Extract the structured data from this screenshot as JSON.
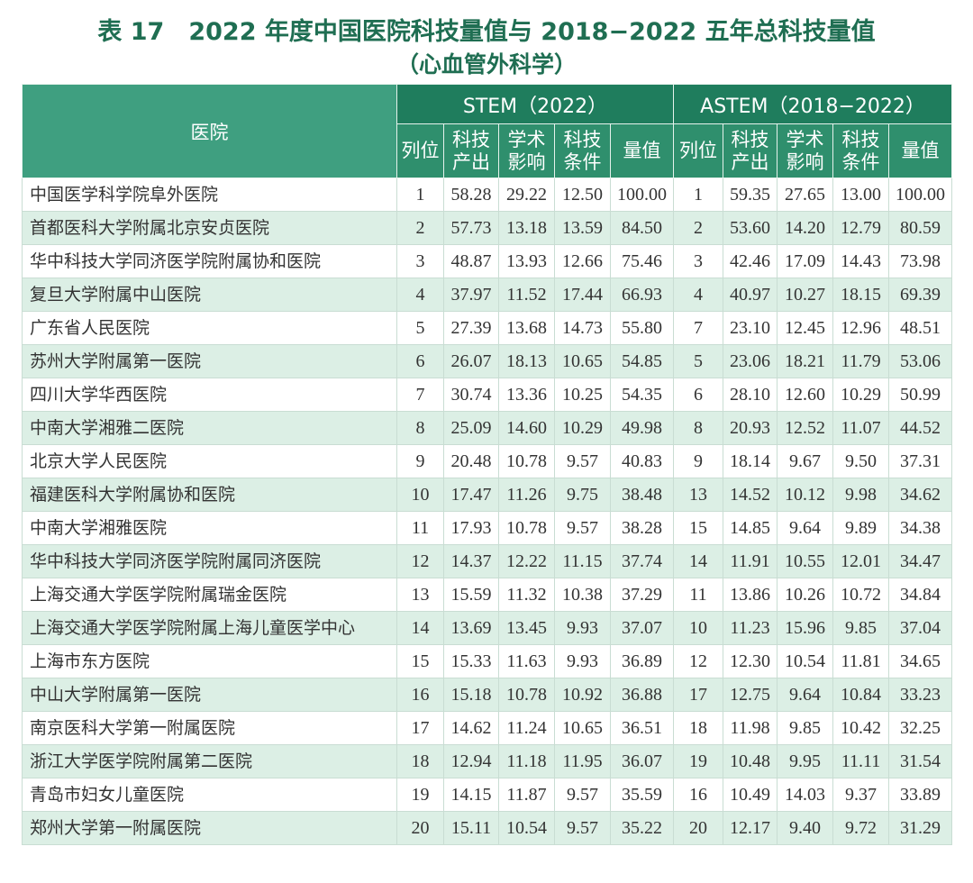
{
  "title": "表 17　2022 年度中国医院科技量值与 2018−2022 五年总科技量值",
  "subtitle": "（心血管外科学）",
  "table": {
    "hospital_header": "医院",
    "groups": [
      {
        "name": "STEM（2022）",
        "columns": [
          "列位",
          "科技\n产出",
          "学术\n影响",
          "科技\n条件",
          "量值"
        ]
      },
      {
        "name": "ASTEM（2018−2022）",
        "columns": [
          "列位",
          "科技\n产出",
          "学术\n影响",
          "科技\n条件",
          "量值"
        ]
      }
    ],
    "rows": [
      [
        "中国医学科学院阜外医院",
        "1",
        "58.28",
        "29.22",
        "12.50",
        "100.00",
        "1",
        "59.35",
        "27.65",
        "13.00",
        "100.00"
      ],
      [
        "首都医科大学附属北京安贞医院",
        "2",
        "57.73",
        "13.18",
        "13.59",
        "84.50",
        "2",
        "53.60",
        "14.20",
        "12.79",
        "80.59"
      ],
      [
        "华中科技大学同济医学院附属协和医院",
        "3",
        "48.87",
        "13.93",
        "12.66",
        "75.46",
        "3",
        "42.46",
        "17.09",
        "14.43",
        "73.98"
      ],
      [
        "复旦大学附属中山医院",
        "4",
        "37.97",
        "11.52",
        "17.44",
        "66.93",
        "4",
        "40.97",
        "10.27",
        "18.15",
        "69.39"
      ],
      [
        "广东省人民医院",
        "5",
        "27.39",
        "13.68",
        "14.73",
        "55.80",
        "7",
        "23.10",
        "12.45",
        "12.96",
        "48.51"
      ],
      [
        "苏州大学附属第一医院",
        "6",
        "26.07",
        "18.13",
        "10.65",
        "54.85",
        "5",
        "23.06",
        "18.21",
        "11.79",
        "53.06"
      ],
      [
        "四川大学华西医院",
        "7",
        "30.74",
        "13.36",
        "10.25",
        "54.35",
        "6",
        "28.10",
        "12.60",
        "10.29",
        "50.99"
      ],
      [
        "中南大学湘雅二医院",
        "8",
        "25.09",
        "14.60",
        "10.29",
        "49.98",
        "8",
        "20.93",
        "12.52",
        "11.07",
        "44.52"
      ],
      [
        "北京大学人民医院",
        "9",
        "20.48",
        "10.78",
        "9.57",
        "40.83",
        "9",
        "18.14",
        "9.67",
        "9.50",
        "37.31"
      ],
      [
        "福建医科大学附属协和医院",
        "10",
        "17.47",
        "11.26",
        "9.75",
        "38.48",
        "13",
        "14.52",
        "10.12",
        "9.98",
        "34.62"
      ],
      [
        "中南大学湘雅医院",
        "11",
        "17.93",
        "10.78",
        "9.57",
        "38.28",
        "15",
        "14.85",
        "9.64",
        "9.89",
        "34.38"
      ],
      [
        "华中科技大学同济医学院附属同济医院",
        "12",
        "14.37",
        "12.22",
        "11.15",
        "37.74",
        "14",
        "11.91",
        "10.55",
        "12.01",
        "34.47"
      ],
      [
        "上海交通大学医学院附属瑞金医院",
        "13",
        "15.59",
        "11.32",
        "10.38",
        "37.29",
        "11",
        "13.86",
        "10.26",
        "10.72",
        "34.84"
      ],
      [
        "上海交通大学医学院附属上海儿童医学中心",
        "14",
        "13.69",
        "13.45",
        "9.93",
        "37.07",
        "10",
        "11.23",
        "15.96",
        "9.85",
        "37.04"
      ],
      [
        "上海市东方医院",
        "15",
        "15.33",
        "11.63",
        "9.93",
        "36.89",
        "12",
        "12.30",
        "10.54",
        "11.81",
        "34.65"
      ],
      [
        "中山大学附属第一医院",
        "16",
        "15.18",
        "10.78",
        "10.92",
        "36.88",
        "17",
        "12.75",
        "9.64",
        "10.84",
        "33.23"
      ],
      [
        "南京医科大学第一附属医院",
        "17",
        "14.62",
        "11.24",
        "10.65",
        "36.51",
        "18",
        "11.98",
        "9.85",
        "10.42",
        "32.25"
      ],
      [
        "浙江大学医学院附属第二医院",
        "18",
        "12.94",
        "11.18",
        "11.95",
        "36.07",
        "19",
        "10.48",
        "9.95",
        "11.11",
        "31.54"
      ],
      [
        "青岛市妇女儿童医院",
        "19",
        "14.15",
        "11.87",
        "9.57",
        "35.59",
        "16",
        "10.49",
        "14.03",
        "9.37",
        "33.89"
      ],
      [
        "郑州大学第一附属医院",
        "20",
        "15.11",
        "10.54",
        "9.57",
        "35.22",
        "20",
        "12.17",
        "9.40",
        "9.72",
        "31.29"
      ]
    ]
  }
}
